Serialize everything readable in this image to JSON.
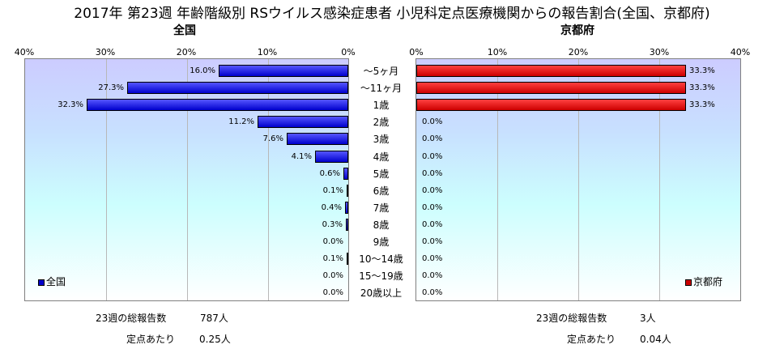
{
  "title": "2017年 第23週 年齢階級別 RSウイルス感染症患者 小児科定点医療機関からの報告割合(全国、京都府)",
  "chart_data": [
    {
      "type": "bar",
      "orientation": "horizontal",
      "title": "全国",
      "direction": "right-to-left",
      "xlim": [
        0,
        40
      ],
      "ticks": [
        "40%",
        "30%",
        "20%",
        "10%",
        "0%"
      ],
      "categories": [
        "～5ヶ月",
        "～11ヶ月",
        "1歳",
        "2歳",
        "3歳",
        "4歳",
        "5歳",
        "6歳",
        "7歳",
        "8歳",
        "9歳",
        "10～14歳",
        "15～19歳",
        "20歳以上"
      ],
      "series": [
        {
          "name": "全国",
          "color": "#0000cc",
          "values": [
            16.0,
            27.3,
            32.3,
            11.2,
            7.6,
            4.1,
            0.6,
            0.1,
            0.4,
            0.3,
            0.0,
            0.1,
            0.0,
            0.0
          ],
          "labels": [
            "16.0%",
            "27.3%",
            "32.3%",
            "11.2%",
            "7.6%",
            "4.1%",
            "0.6%",
            "0.1%",
            "0.4%",
            "0.3%",
            "0.0%",
            "0.1%",
            "0.0%",
            "0.0%"
          ]
        }
      ],
      "legend": "bottom-left",
      "grid": true
    },
    {
      "type": "bar",
      "orientation": "horizontal",
      "title": "京都府",
      "direction": "left-to-right",
      "xlim": [
        0,
        40
      ],
      "ticks": [
        "0%",
        "10%",
        "20%",
        "30%",
        "40%"
      ],
      "categories": [
        "～5ヶ月",
        "～11ヶ月",
        "1歳",
        "2歳",
        "3歳",
        "4歳",
        "5歳",
        "6歳",
        "7歳",
        "8歳",
        "9歳",
        "10～14歳",
        "15～19歳",
        "20歳以上"
      ],
      "series": [
        {
          "name": "京都府",
          "color": "#cc0000",
          "values": [
            33.3,
            33.3,
            33.3,
            0.0,
            0.0,
            0.0,
            0.0,
            0.0,
            0.0,
            0.0,
            0.0,
            0.0,
            0.0,
            0.0
          ],
          "labels": [
            "33.3%",
            "33.3%",
            "33.3%",
            "0.0%",
            "0.0%",
            "0.0%",
            "0.0%",
            "0.0%",
            "0.0%",
            "0.0%",
            "0.0%",
            "0.0%",
            "0.0%",
            "0.0%"
          ]
        }
      ],
      "legend": "bottom-right",
      "grid": true
    }
  ],
  "footer": {
    "national": {
      "total_label": "23週の総報告数",
      "total_value": "787人",
      "per_label": "定点あたり",
      "per_value": "0.25人"
    },
    "kyoto": {
      "total_label": "23週の総報告数",
      "total_value": "3人",
      "per_label": "定点あたり",
      "per_value": "0.04人"
    }
  }
}
